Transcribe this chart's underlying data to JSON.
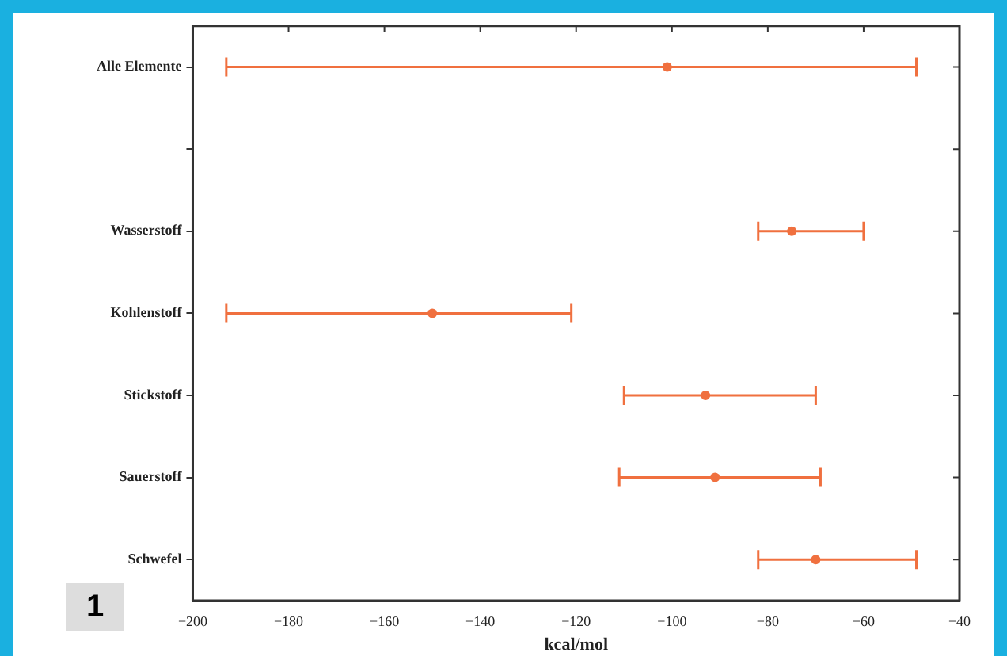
{
  "chart_data": {
    "type": "scatter",
    "orientation": "horizontal",
    "xlabel": "kcal/mol",
    "categories": [
      "Alle Elemente",
      null,
      "Wasserstoff",
      "Kohlenstoff",
      "Stickstoff",
      "Sauerstoff",
      "Schwefel"
    ],
    "series": [
      {
        "color": "#f0703f",
        "values": [
          -101,
          null,
          -75,
          -150,
          -93,
          -91,
          -70
        ],
        "errors": [
          [
            -193,
            -49
          ],
          null,
          [
            -82,
            -60
          ],
          [
            -193,
            -121
          ],
          [
            -110,
            -70
          ],
          [
            -111,
            -69
          ],
          [
            -82,
            -49
          ]
        ]
      }
    ],
    "xlim": [
      -200,
      -40
    ],
    "xticks": [
      -200,
      -180,
      -160,
      -140,
      -120,
      -100,
      -80,
      -60,
      -40
    ],
    "grid": false,
    "legend": false,
    "annotations": [
      "1"
    ]
  }
}
